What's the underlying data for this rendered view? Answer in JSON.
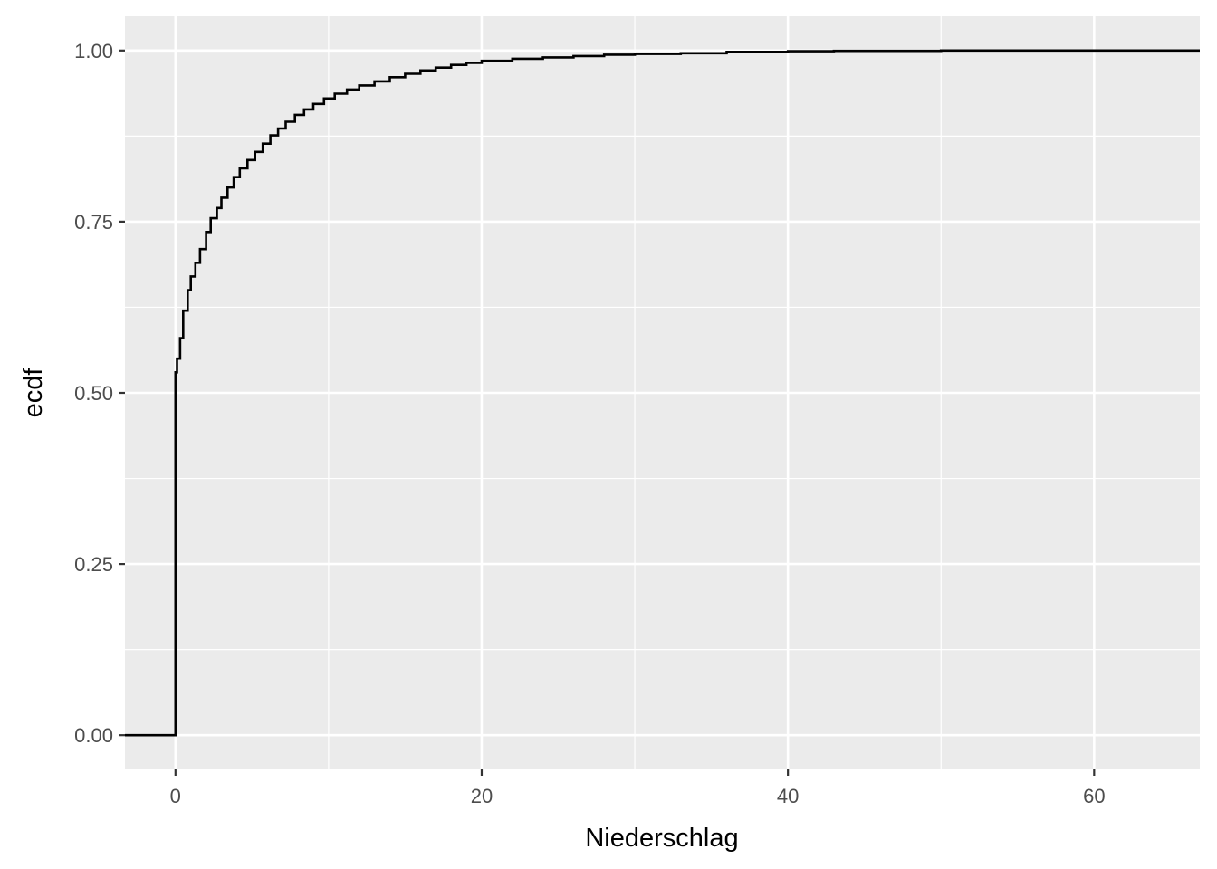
{
  "chart_data": {
    "type": "line",
    "step": true,
    "title": "",
    "xlabel": "Niederschlag",
    "ylabel": "ecdf",
    "xlim": [
      -3.3,
      66.9
    ],
    "ylim": [
      -0.05,
      1.05
    ],
    "x_ticks": [
      0,
      20,
      40,
      60
    ],
    "x_tick_labels": [
      "0",
      "20",
      "40",
      "60"
    ],
    "x_minor_ticks": [
      10,
      30,
      50
    ],
    "y_ticks": [
      0,
      0.25,
      0.5,
      0.75,
      1
    ],
    "y_tick_labels": [
      "0.00",
      "0.25",
      "0.50",
      "0.75",
      "1.00"
    ],
    "y_minor_ticks": [
      0.125,
      0.375,
      0.625,
      0.875
    ],
    "grid": true,
    "series": [
      {
        "color": "#000000",
        "x": [
          -3.3,
          0,
          0,
          0.1,
          0.3,
          0.5,
          0.8,
          1.0,
          1.3,
          1.6,
          2.0,
          2.3,
          2.7,
          3.0,
          3.4,
          3.8,
          4.2,
          4.7,
          5.2,
          5.7,
          6.2,
          6.7,
          7.2,
          7.8,
          8.4,
          9.0,
          9.7,
          10.4,
          11.2,
          12.0,
          13.0,
          14.0,
          15.0,
          16.0,
          17.0,
          18.0,
          19.0,
          20.0,
          22.0,
          24.0,
          26.0,
          28.0,
          30.0,
          33.0,
          36.0,
          40.0,
          43.0,
          50.0,
          66.9
        ],
        "y": [
          0,
          0,
          0.53,
          0.55,
          0.58,
          0.62,
          0.65,
          0.67,
          0.69,
          0.71,
          0.735,
          0.755,
          0.77,
          0.785,
          0.8,
          0.815,
          0.828,
          0.84,
          0.852,
          0.864,
          0.876,
          0.886,
          0.896,
          0.906,
          0.914,
          0.922,
          0.93,
          0.937,
          0.943,
          0.949,
          0.955,
          0.961,
          0.966,
          0.971,
          0.975,
          0.979,
          0.982,
          0.985,
          0.988,
          0.99,
          0.992,
          0.994,
          0.995,
          0.996,
          0.998,
          0.999,
          0.9995,
          1.0,
          1.0
        ]
      }
    ]
  }
}
